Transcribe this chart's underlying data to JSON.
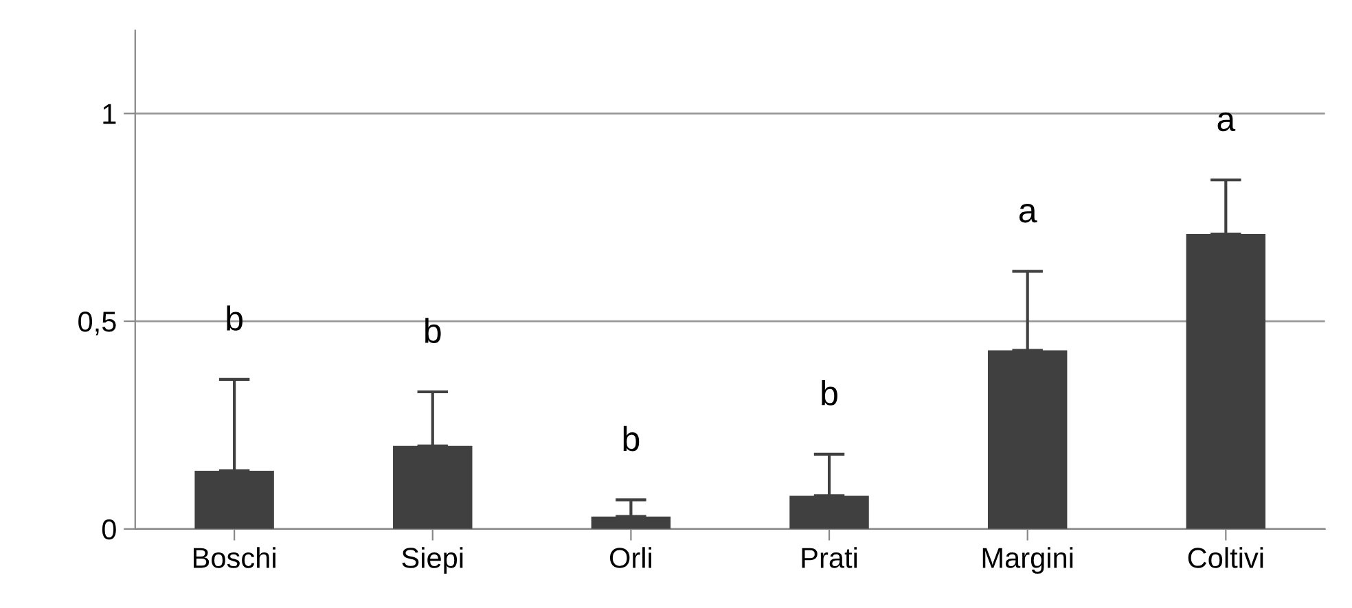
{
  "chart_data": {
    "type": "bar",
    "categories": [
      "Boschi",
      "Siepi",
      "Orli",
      "Prati",
      "Margini",
      "Coltivi"
    ],
    "values": [
      0.14,
      0.2,
      0.03,
      0.08,
      0.43,
      0.71
    ],
    "errors": [
      [
        0.14,
        0.36
      ],
      [
        0.2,
        0.33
      ],
      [
        0.03,
        0.07
      ],
      [
        0.08,
        0.18
      ],
      [
        0.43,
        0.62
      ],
      [
        0.71,
        0.84
      ]
    ],
    "color": "#404040",
    "ylim": [
      0,
      1.2
    ],
    "yticks": [
      0,
      {
        "value": 0.5,
        "label": "0,5"
      },
      1
    ],
    "grid": "y",
    "annotations": [
      "b",
      "b",
      "b",
      "b",
      "a",
      "a"
    ]
  }
}
